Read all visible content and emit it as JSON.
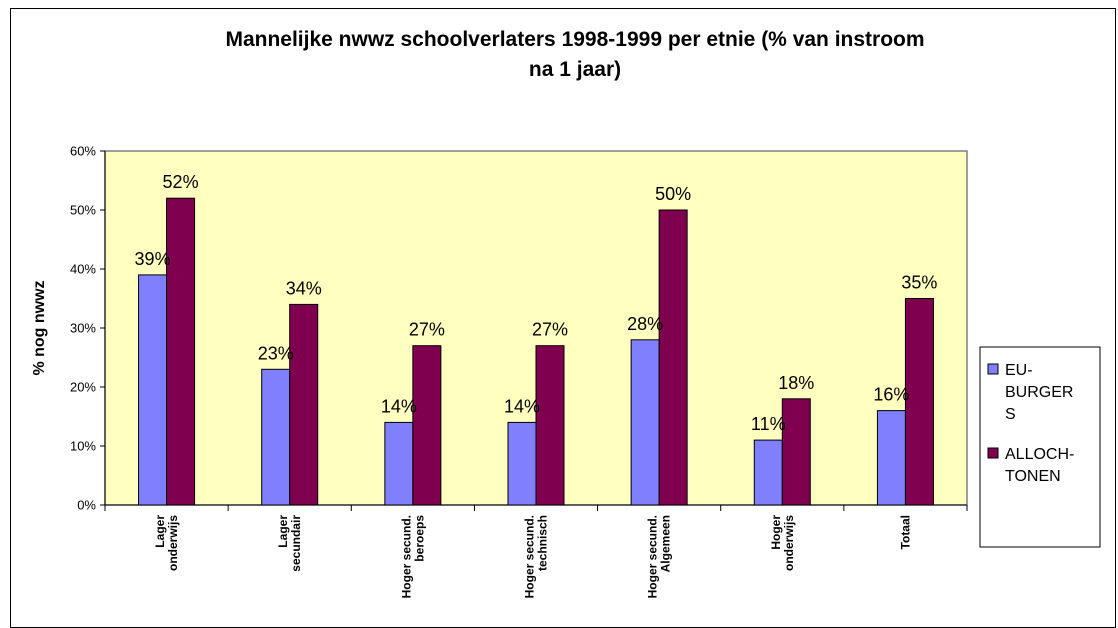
{
  "chart_data": {
    "type": "bar",
    "title": [
      "Mannelijke nwwz schoolverlaters 1998-1999 per etnie (% van instroom",
      "na 1 jaar)"
    ],
    "ylabel": "% nog nwwz",
    "xlabel": "",
    "ylim": [
      0,
      60
    ],
    "yticks": [
      "0%",
      "10%",
      "20%",
      "30%",
      "40%",
      "50%",
      "60%"
    ],
    "categories": [
      [
        "Lager",
        "onderwijs"
      ],
      [
        "Lager",
        "secundair"
      ],
      [
        "Hoger secund.",
        "beroeps"
      ],
      [
        "Hoger secund.",
        "technisch"
      ],
      [
        "Hoger secund.",
        "Algemeen"
      ],
      [
        "Hoger",
        "onderwijs"
      ],
      [
        "Totaal"
      ]
    ],
    "series": [
      {
        "name": [
          "EU-",
          "BURGER",
          "S"
        ],
        "color": "#8080ff",
        "values": [
          39,
          23,
          14,
          14,
          28,
          11,
          16
        ],
        "labels": [
          "39%",
          "23%",
          "14%",
          "14%",
          "28%",
          "11%",
          "16%"
        ]
      },
      {
        "name": [
          "ALLOCH-",
          "TONEN"
        ],
        "color": "#800050",
        "values": [
          52,
          34,
          27,
          27,
          50,
          18,
          35
        ],
        "labels": [
          "52%",
          "34%",
          "27%",
          "27%",
          "50%",
          "18%",
          "35%"
        ]
      }
    ],
    "plot_background": "#ffffc0",
    "grid": false,
    "legend_position": "right"
  }
}
